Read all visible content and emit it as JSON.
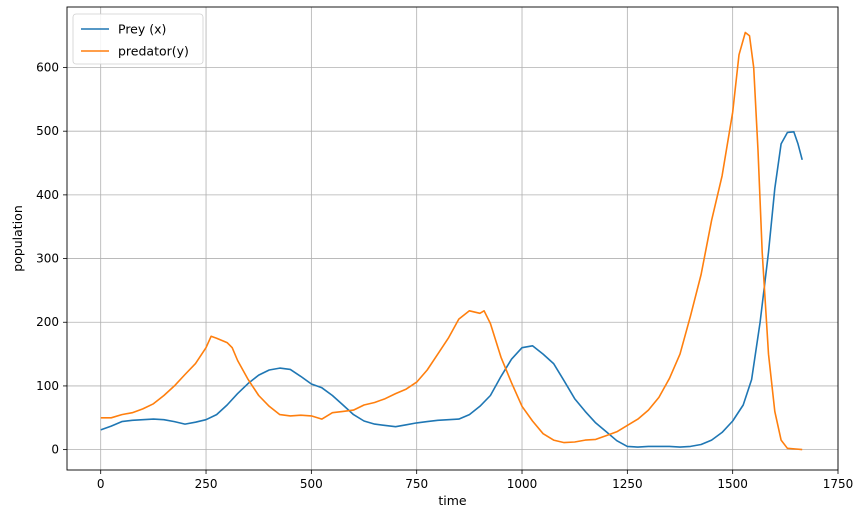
{
  "chart_data": {
    "type": "line",
    "title": "",
    "xlabel": "time",
    "ylabel": "population",
    "xlim": [
      -80,
      1750
    ],
    "ylim": [
      -32,
      695
    ],
    "xticks": [
      0,
      250,
      500,
      750,
      1000,
      1250,
      1500,
      1750
    ],
    "yticks": [
      0,
      100,
      200,
      300,
      400,
      500,
      600
    ],
    "grid": true,
    "legend": "top-left",
    "series": [
      {
        "name": "Prey (x)",
        "color": "#1f77b4",
        "points": [
          [
            0,
            31
          ],
          [
            25,
            37
          ],
          [
            50,
            44
          ],
          [
            75,
            46
          ],
          [
            100,
            47
          ],
          [
            125,
            48
          ],
          [
            150,
            47
          ],
          [
            175,
            44
          ],
          [
            200,
            40
          ],
          [
            225,
            43
          ],
          [
            250,
            47
          ],
          [
            275,
            55
          ],
          [
            300,
            70
          ],
          [
            325,
            88
          ],
          [
            350,
            104
          ],
          [
            375,
            117
          ],
          [
            400,
            125
          ],
          [
            425,
            128
          ],
          [
            450,
            126
          ],
          [
            475,
            115
          ],
          [
            500,
            103
          ],
          [
            525,
            97
          ],
          [
            550,
            85
          ],
          [
            575,
            70
          ],
          [
            600,
            55
          ],
          [
            625,
            45
          ],
          [
            650,
            40
          ],
          [
            675,
            38
          ],
          [
            700,
            36
          ],
          [
            725,
            39
          ],
          [
            750,
            42
          ],
          [
            775,
            44
          ],
          [
            800,
            46
          ],
          [
            825,
            47
          ],
          [
            850,
            48
          ],
          [
            875,
            55
          ],
          [
            900,
            68
          ],
          [
            925,
            85
          ],
          [
            950,
            115
          ],
          [
            975,
            142
          ],
          [
            1000,
            160
          ],
          [
            1025,
            163
          ],
          [
            1050,
            150
          ],
          [
            1075,
            135
          ],
          [
            1100,
            108
          ],
          [
            1125,
            80
          ],
          [
            1150,
            60
          ],
          [
            1175,
            42
          ],
          [
            1200,
            28
          ],
          [
            1225,
            14
          ],
          [
            1250,
            5
          ],
          [
            1275,
            4
          ],
          [
            1300,
            5
          ],
          [
            1325,
            5
          ],
          [
            1350,
            5
          ],
          [
            1375,
            4
          ],
          [
            1400,
            5
          ],
          [
            1425,
            8
          ],
          [
            1450,
            15
          ],
          [
            1475,
            27
          ],
          [
            1500,
            45
          ],
          [
            1525,
            70
          ],
          [
            1545,
            110
          ],
          [
            1565,
            200
          ],
          [
            1585,
            310
          ],
          [
            1600,
            410
          ],
          [
            1615,
            480
          ],
          [
            1630,
            498
          ],
          [
            1645,
            499
          ],
          [
            1655,
            480
          ],
          [
            1665,
            455
          ]
        ]
      },
      {
        "name": "predator(y)",
        "color": "#ff7f0e",
        "points": [
          [
            0,
            50
          ],
          [
            25,
            50
          ],
          [
            50,
            55
          ],
          [
            75,
            58
          ],
          [
            100,
            64
          ],
          [
            125,
            72
          ],
          [
            150,
            85
          ],
          [
            175,
            100
          ],
          [
            200,
            118
          ],
          [
            225,
            135
          ],
          [
            250,
            160
          ],
          [
            262,
            178
          ],
          [
            275,
            175
          ],
          [
            300,
            168
          ],
          [
            312,
            160
          ],
          [
            325,
            140
          ],
          [
            350,
            110
          ],
          [
            375,
            85
          ],
          [
            400,
            68
          ],
          [
            425,
            55
          ],
          [
            450,
            53
          ],
          [
            475,
            54
          ],
          [
            500,
            53
          ],
          [
            525,
            48
          ],
          [
            550,
            58
          ],
          [
            575,
            60
          ],
          [
            600,
            62
          ],
          [
            625,
            70
          ],
          [
            650,
            74
          ],
          [
            675,
            80
          ],
          [
            700,
            88
          ],
          [
            725,
            95
          ],
          [
            750,
            106
          ],
          [
            775,
            125
          ],
          [
            800,
            150
          ],
          [
            825,
            175
          ],
          [
            850,
            205
          ],
          [
            875,
            218
          ],
          [
            900,
            214
          ],
          [
            910,
            218
          ],
          [
            925,
            198
          ],
          [
            950,
            145
          ],
          [
            975,
            105
          ],
          [
            1000,
            68
          ],
          [
            1025,
            45
          ],
          [
            1050,
            25
          ],
          [
            1075,
            15
          ],
          [
            1100,
            11
          ],
          [
            1125,
            12
          ],
          [
            1150,
            15
          ],
          [
            1175,
            16
          ],
          [
            1200,
            22
          ],
          [
            1225,
            28
          ],
          [
            1250,
            38
          ],
          [
            1275,
            48
          ],
          [
            1300,
            62
          ],
          [
            1325,
            82
          ],
          [
            1350,
            112
          ],
          [
            1375,
            150
          ],
          [
            1400,
            210
          ],
          [
            1425,
            275
          ],
          [
            1450,
            360
          ],
          [
            1475,
            430
          ],
          [
            1500,
            530
          ],
          [
            1515,
            620
          ],
          [
            1530,
            655
          ],
          [
            1540,
            650
          ],
          [
            1550,
            600
          ],
          [
            1560,
            470
          ],
          [
            1570,
            310
          ],
          [
            1585,
            150
          ],
          [
            1600,
            60
          ],
          [
            1615,
            15
          ],
          [
            1630,
            2
          ],
          [
            1650,
            1
          ],
          [
            1665,
            0
          ]
        ]
      }
    ]
  }
}
